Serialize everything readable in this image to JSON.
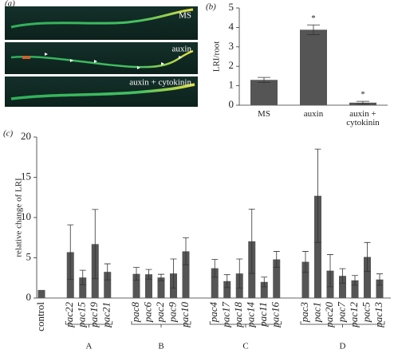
{
  "panel_labels": [
    "(a)",
    "(b)",
    "(c)"
  ],
  "image_panel": {
    "labels": [
      "MS",
      "auxin",
      "auxin + cytokinin"
    ]
  },
  "chart_data": [
    {
      "type": "bar",
      "ylabel": "LRI/root",
      "categories": [
        "MS",
        "auxin",
        "auxin + cytokinin"
      ],
      "values": [
        1.3,
        3.88,
        0.13
      ],
      "errors": [
        0.13,
        0.25,
        0.07
      ],
      "significance": [
        null,
        "*",
        "*"
      ],
      "color": "#555555",
      "ylim": [
        0,
        5
      ],
      "yticks": [
        0,
        1,
        2,
        3,
        4,
        5
      ]
    },
    {
      "type": "bar",
      "ylabel": "relative change of LRI",
      "categories": [
        "control",
        "pac22",
        "pac15",
        "pac19",
        "pac21",
        "pac8",
        "pac6",
        "pac2",
        "pac9",
        "pac10",
        "pac4",
        "pac17",
        "pac18",
        "pac14",
        "pac11",
        "pac16",
        "pac3",
        "pac1",
        "pac20",
        "pac7",
        "pac12",
        "pac5",
        "pac13"
      ],
      "values": [
        1.0,
        5.7,
        2.55,
        6.7,
        3.25,
        3.0,
        2.95,
        2.55,
        3.05,
        5.8,
        3.7,
        2.1,
        3.05,
        7.05,
        2.0,
        4.8,
        4.5,
        12.7,
        3.4,
        2.75,
        2.2,
        5.1,
        2.3
      ],
      "errors": [
        null,
        3.4,
        0.9,
        4.3,
        1.0,
        0.8,
        0.6,
        0.4,
        1.8,
        1.7,
        1.1,
        0.8,
        1.8,
        4.0,
        0.6,
        1.0,
        1.3,
        5.8,
        2.0,
        0.9,
        0.6,
        1.8,
        0.7
      ],
      "groups": [
        null,
        "A",
        "A",
        "A",
        "A",
        "B",
        "B",
        "B",
        "B",
        "B",
        "C",
        "C",
        "C",
        "C",
        "C",
        "C",
        "D",
        "D",
        "D",
        "D",
        "D",
        "D",
        "D"
      ],
      "color": "#555555",
      "ylim": [
        0,
        20
      ],
      "yticks": [
        0,
        5,
        10,
        15,
        20
      ]
    }
  ]
}
